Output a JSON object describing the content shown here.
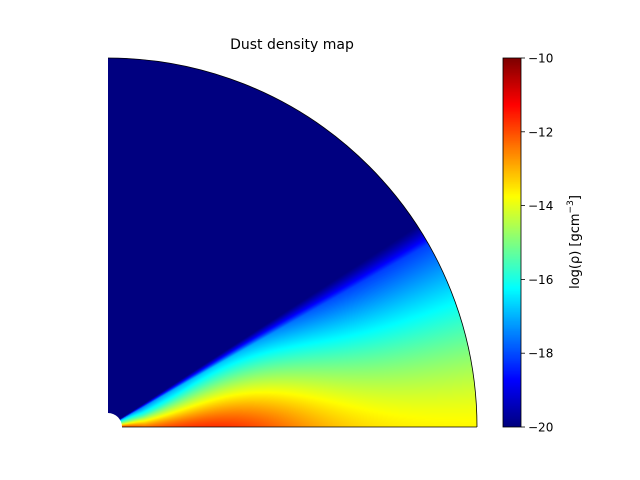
{
  "chart_data": {
    "type": "heatmap",
    "title": "Dust density map",
    "geometry": "quarter-disk (polar wedge) map",
    "colormap": "jet",
    "colorbar": {
      "label": "log(ρ) [gcm⁻³]",
      "label_main": "log(ρ) [gcm",
      "label_sup": "−3",
      "label_end": "]",
      "range": [
        -20,
        -10
      ],
      "ticks": [
        -10,
        -12,
        -14,
        -16,
        -18,
        -20
      ],
      "tick_labels": [
        "−10",
        "−12",
        "−14",
        "−16",
        "−18",
        "−20"
      ],
      "placement": "right"
    },
    "background_value": -20,
    "disk_structure": {
      "description": "dense flared disk near midplane, low-density envelope above",
      "midplane_peak_near_center": -11.5,
      "midplane_outer": -13.7,
      "upper_wedge_edge_value": -20,
      "wedge_edge_angle_deg": 33
    },
    "axes_visible": false,
    "grid": false,
    "colors": {
      "background_min": "#00007f",
      "edge": "#000000"
    }
  }
}
